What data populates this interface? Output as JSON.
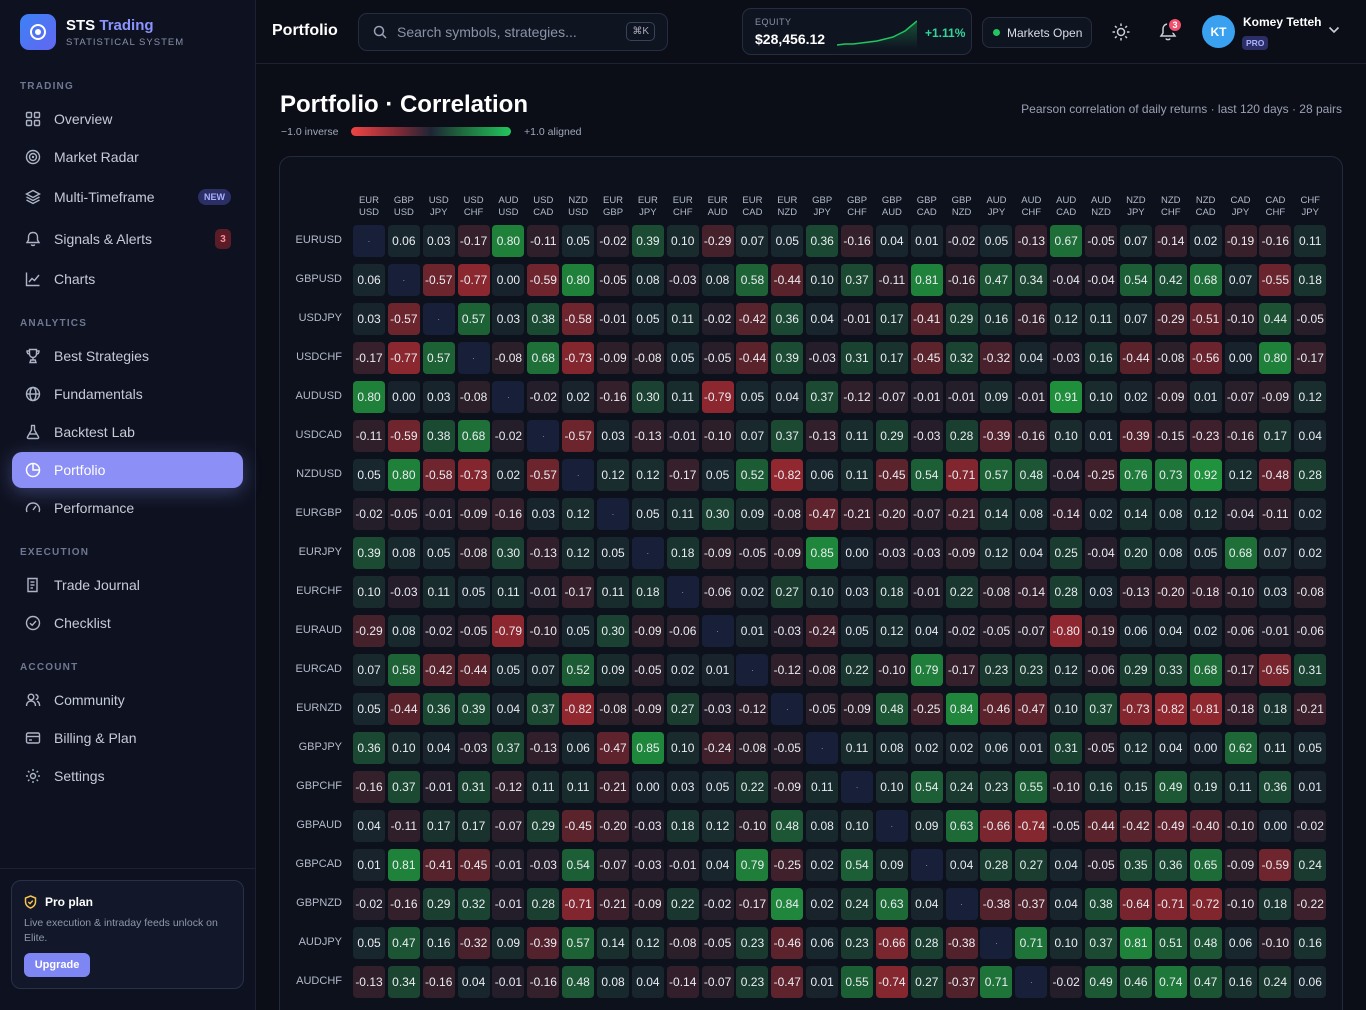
{
  "brand": {
    "name": "STS",
    "name_accent": "Trading",
    "subtitle": "STATISTICAL SYSTEM"
  },
  "sidebar": {
    "sections": [
      {
        "label": "TRADING",
        "items": [
          {
            "label": "Overview",
            "icon": "grid-icon"
          },
          {
            "label": "Market Radar",
            "icon": "target-icon"
          },
          {
            "label": "Multi-Timeframe",
            "icon": "layers-icon",
            "badge": "NEW"
          },
          {
            "label": "Signals & Alerts",
            "icon": "bell-icon",
            "count": "3"
          },
          {
            "label": "Charts",
            "icon": "line-chart-icon"
          }
        ]
      },
      {
        "label": "ANALYTICS",
        "items": [
          {
            "label": "Best Strategies",
            "icon": "trophy-icon"
          },
          {
            "label": "Fundamentals",
            "icon": "globe-icon"
          },
          {
            "label": "Backtest Lab",
            "icon": "flask-icon"
          },
          {
            "label": "Portfolio",
            "icon": "pie-chart-icon",
            "active": true
          },
          {
            "label": "Performance",
            "icon": "gauge-icon"
          }
        ]
      },
      {
        "label": "EXECUTION",
        "items": [
          {
            "label": "Trade Journal",
            "icon": "journal-icon"
          },
          {
            "label": "Checklist",
            "icon": "check-circle-icon"
          }
        ]
      },
      {
        "label": "ACCOUNT",
        "items": [
          {
            "label": "Community",
            "icon": "users-icon"
          },
          {
            "label": "Billing & Plan",
            "icon": "credit-card-icon"
          },
          {
            "label": "Settings",
            "icon": "gear-icon"
          }
        ]
      }
    ],
    "pro": {
      "title": "Pro plan",
      "desc": "Live execution & intraday feeds unlock on Elite.",
      "button": "Upgrade"
    }
  },
  "topbar": {
    "title": "Portfolio",
    "search_placeholder": "Search symbols, strategies...",
    "shortcut": "⌘K",
    "equity": {
      "label": "EQUITY",
      "value": "$28,456.12",
      "change": "+1.11%"
    },
    "market_status": "Markets Open",
    "notifications": "3",
    "user": {
      "initials": "KT",
      "name": "Komey Tetteh",
      "plan": "PRO"
    }
  },
  "page": {
    "title": "Portfolio · Correlation",
    "subtitle": "Pearson correlation of daily returns · last 120 days · 28 pairs",
    "legend_left": "−1.0 inverse",
    "legend_right": "+1.0 aligned",
    "colors": {
      "positive": "#22c55e",
      "negative": "#ef4444",
      "neutral": "#1e2536"
    }
  },
  "correlation": {
    "col_labels": [
      [
        "EUR",
        "USD"
      ],
      [
        "GBP",
        "USD"
      ],
      [
        "USD",
        "JPY"
      ],
      [
        "USD",
        "CHF"
      ],
      [
        "AUD",
        "USD"
      ],
      [
        "USD",
        "CAD"
      ],
      [
        "NZD",
        "USD"
      ],
      [
        "EUR",
        "GBP"
      ],
      [
        "EUR",
        "JPY"
      ],
      [
        "EUR",
        "CHF"
      ],
      [
        "EUR",
        "AUD"
      ],
      [
        "EUR",
        "CAD"
      ],
      [
        "EUR",
        "NZD"
      ],
      [
        "GBP",
        "JPY"
      ],
      [
        "GBP",
        "CHF"
      ],
      [
        "GBP",
        "AUD"
      ],
      [
        "GBP",
        "CAD"
      ],
      [
        "GBP",
        "NZD"
      ],
      [
        "AUD",
        "JPY"
      ],
      [
        "AUD",
        "CHF"
      ],
      [
        "AUD",
        "CAD"
      ],
      [
        "AUD",
        "NZD"
      ],
      [
        "NZD",
        "JPY"
      ],
      [
        "NZD",
        "CHF"
      ],
      [
        "NZD",
        "CAD"
      ],
      [
        "CAD",
        "JPY"
      ],
      [
        "CAD",
        "CHF"
      ],
      [
        "CHF",
        "JPY"
      ]
    ],
    "row_labels": [
      "EURUSD",
      "GBPUSD",
      "USDJPY",
      "USDCHF",
      "AUDUSD",
      "USDCAD",
      "NZDUSD",
      "EURGBP",
      "EURJPY",
      "EURCHF",
      "EURAUD",
      "EURCAD",
      "EURNZD",
      "GBPJPY",
      "GBPCHF",
      "GBPAUD",
      "GBPCAD",
      "GBPNZD",
      "AUDJPY",
      "AUDCHF"
    ],
    "diag_label": "·",
    "rows": [
      [
        "·",
        "0.06",
        "0.03",
        "-0.17",
        "0.80",
        "-0.11",
        "0.05",
        "-0.02",
        "0.39",
        "0.10",
        "-0.29",
        "0.07",
        "0.05",
        "0.36",
        "-0.16",
        "0.04",
        "0.01",
        "-0.02",
        "0.05",
        "-0.13",
        "0.67",
        "-0.05",
        "0.07",
        "-0.14",
        "0.02",
        "-0.19",
        "-0.16",
        "0.11"
      ],
      [
        "0.06",
        "·",
        "-0.57",
        "-0.77",
        "0.00",
        "-0.59",
        "0.80",
        "-0.05",
        "0.08",
        "-0.03",
        "0.08",
        "0.58",
        "-0.44",
        "0.10",
        "0.37",
        "-0.11",
        "0.81",
        "-0.16",
        "0.47",
        "0.34",
        "-0.04",
        "-0.04",
        "0.54",
        "0.42",
        "0.68",
        "0.07",
        "-0.55",
        "0.18"
      ],
      [
        "0.03",
        "-0.57",
        "·",
        "0.57",
        "0.03",
        "0.38",
        "-0.58",
        "-0.01",
        "0.05",
        "0.11",
        "-0.02",
        "-0.42",
        "0.36",
        "0.04",
        "-0.01",
        "0.17",
        "-0.41",
        "0.29",
        "0.16",
        "-0.16",
        "0.12",
        "0.11",
        "0.07",
        "-0.29",
        "-0.51",
        "-0.10",
        "0.44",
        "-0.05"
      ],
      [
        "-0.17",
        "-0.77",
        "0.57",
        "·",
        "-0.08",
        "0.68",
        "-0.73",
        "-0.09",
        "-0.08",
        "0.05",
        "-0.05",
        "-0.44",
        "0.39",
        "-0.03",
        "0.31",
        "0.17",
        "-0.45",
        "0.32",
        "-0.32",
        "0.04",
        "-0.03",
        "0.16",
        "-0.44",
        "-0.08",
        "-0.56",
        "0.00",
        "0.80",
        "-0.17"
      ],
      [
        "0.80",
        "0.00",
        "0.03",
        "-0.08",
        "·",
        "-0.02",
        "0.02",
        "-0.16",
        "0.30",
        "0.11",
        "-0.79",
        "0.05",
        "0.04",
        "0.37",
        "-0.12",
        "-0.07",
        "-0.01",
        "-0.01",
        "0.09",
        "-0.01",
        "0.91",
        "0.10",
        "0.02",
        "-0.09",
        "0.01",
        "-0.07",
        "-0.09",
        "0.12"
      ],
      [
        "-0.11",
        "-0.59",
        "0.38",
        "0.68",
        "-0.02",
        "·",
        "-0.57",
        "0.03",
        "-0.13",
        "-0.01",
        "-0.10",
        "0.07",
        "0.37",
        "-0.13",
        "0.11",
        "0.29",
        "-0.03",
        "0.28",
        "-0.39",
        "-0.16",
        "0.10",
        "0.01",
        "-0.39",
        "-0.15",
        "-0.23",
        "-0.16",
        "0.17",
        "0.04"
      ],
      [
        "0.05",
        "0.80",
        "-0.58",
        "-0.73",
        "0.02",
        "-0.57",
        "·",
        "0.12",
        "0.12",
        "-0.17",
        "0.05",
        "0.52",
        "-0.82",
        "0.06",
        "0.11",
        "-0.45",
        "0.54",
        "-0.71",
        "0.57",
        "0.48",
        "-0.04",
        "-0.25",
        "0.76",
        "0.73",
        "0.92",
        "0.12",
        "-0.48",
        "0.28"
      ],
      [
        "-0.02",
        "-0.05",
        "-0.01",
        "-0.09",
        "-0.16",
        "0.03",
        "0.12",
        "·",
        "0.05",
        "0.11",
        "0.30",
        "0.09",
        "-0.08",
        "-0.47",
        "-0.21",
        "-0.20",
        "-0.07",
        "-0.21",
        "0.14",
        "0.08",
        "-0.14",
        "0.02",
        "0.14",
        "0.08",
        "0.12",
        "-0.04",
        "-0.11",
        "0.02"
      ],
      [
        "0.39",
        "0.08",
        "0.05",
        "-0.08",
        "0.30",
        "-0.13",
        "0.12",
        "0.05",
        "·",
        "0.18",
        "-0.09",
        "-0.05",
        "-0.09",
        "0.85",
        "0.00",
        "-0.03",
        "-0.03",
        "-0.09",
        "0.12",
        "0.04",
        "0.25",
        "-0.04",
        "0.20",
        "0.08",
        "0.05",
        "0.68",
        "0.07",
        "0.02"
      ],
      [
        "0.10",
        "-0.03",
        "0.11",
        "0.05",
        "0.11",
        "-0.01",
        "-0.17",
        "0.11",
        "0.18",
        "·",
        "-0.06",
        "0.02",
        "0.27",
        "0.10",
        "0.03",
        "0.18",
        "-0.01",
        "0.22",
        "-0.08",
        "-0.14",
        "0.28",
        "0.03",
        "-0.13",
        "-0.20",
        "-0.18",
        "-0.10",
        "0.03",
        "-0.08"
      ],
      [
        "-0.29",
        "0.08",
        "-0.02",
        "-0.05",
        "-0.79",
        "-0.10",
        "0.05",
        "0.30",
        "-0.09",
        "-0.06",
        "·",
        "0.01",
        "-0.03",
        "-0.24",
        "0.05",
        "0.12",
        "0.04",
        "-0.02",
        "-0.05",
        "-0.07",
        "-0.80",
        "-0.19",
        "0.06",
        "0.04",
        "0.02",
        "-0.06",
        "-0.01",
        "-0.06"
      ],
      [
        "0.07",
        "0.58",
        "-0.42",
        "-0.44",
        "0.05",
        "0.07",
        "0.52",
        "0.09",
        "-0.05",
        "0.02",
        "0.01",
        "·",
        "-0.12",
        "-0.08",
        "0.22",
        "-0.10",
        "0.79",
        "-0.17",
        "0.23",
        "0.23",
        "0.12",
        "-0.06",
        "0.29",
        "0.33",
        "0.68",
        "-0.17",
        "-0.65",
        "0.31"
      ],
      [
        "0.05",
        "-0.44",
        "0.36",
        "0.39",
        "0.04",
        "0.37",
        "-0.82",
        "-0.08",
        "-0.09",
        "0.27",
        "-0.03",
        "-0.12",
        "·",
        "-0.05",
        "-0.09",
        "0.48",
        "-0.25",
        "0.84",
        "-0.46",
        "-0.47",
        "0.10",
        "0.37",
        "-0.73",
        "-0.82",
        "-0.81",
        "-0.18",
        "0.18",
        "-0.21"
      ],
      [
        "0.36",
        "0.10",
        "0.04",
        "-0.03",
        "0.37",
        "-0.13",
        "0.06",
        "-0.47",
        "0.85",
        "0.10",
        "-0.24",
        "-0.08",
        "-0.05",
        "·",
        "0.11",
        "0.08",
        "0.02",
        "0.02",
        "0.06",
        "0.01",
        "0.31",
        "-0.05",
        "0.12",
        "0.04",
        "0.00",
        "0.62",
        "0.11",
        "0.05"
      ],
      [
        "-0.16",
        "0.37",
        "-0.01",
        "0.31",
        "-0.12",
        "0.11",
        "0.11",
        "-0.21",
        "0.00",
        "0.03",
        "0.05",
        "0.22",
        "-0.09",
        "0.11",
        "·",
        "0.10",
        "0.54",
        "0.24",
        "0.23",
        "0.55",
        "-0.10",
        "0.16",
        "0.15",
        "0.49",
        "0.19",
        "0.11",
        "0.36",
        "0.01"
      ],
      [
        "0.04",
        "-0.11",
        "0.17",
        "0.17",
        "-0.07",
        "0.29",
        "-0.45",
        "-0.20",
        "-0.03",
        "0.18",
        "0.12",
        "-0.10",
        "0.48",
        "0.08",
        "0.10",
        "·",
        "0.09",
        "0.63",
        "-0.66",
        "-0.74",
        "-0.05",
        "-0.44",
        "-0.42",
        "-0.49",
        "-0.40",
        "-0.10",
        "0.00",
        "-0.02"
      ],
      [
        "0.01",
        "0.81",
        "-0.41",
        "-0.45",
        "-0.01",
        "-0.03",
        "0.54",
        "-0.07",
        "-0.03",
        "-0.01",
        "0.04",
        "0.79",
        "-0.25",
        "0.02",
        "0.54",
        "0.09",
        "·",
        "0.04",
        "0.28",
        "0.27",
        "0.04",
        "-0.05",
        "0.35",
        "0.36",
        "0.65",
        "-0.09",
        "-0.59",
        "0.24"
      ],
      [
        "-0.02",
        "-0.16",
        "0.29",
        "0.32",
        "-0.01",
        "0.28",
        "-0.71",
        "-0.21",
        "-0.09",
        "0.22",
        "-0.02",
        "-0.17",
        "0.84",
        "0.02",
        "0.24",
        "0.63",
        "0.04",
        "·",
        "-0.38",
        "-0.37",
        "0.04",
        "0.38",
        "-0.64",
        "-0.71",
        "-0.72",
        "-0.10",
        "0.18",
        "-0.22"
      ],
      [
        "0.05",
        "0.47",
        "0.16",
        "-0.32",
        "0.09",
        "-0.39",
        "0.57",
        "0.14",
        "0.12",
        "-0.08",
        "-0.05",
        "0.23",
        "-0.46",
        "0.06",
        "0.23",
        "-0.66",
        "0.28",
        "-0.38",
        "·",
        "0.71",
        "0.10",
        "0.37",
        "0.81",
        "0.51",
        "0.48",
        "0.06",
        "-0.10",
        "0.16"
      ],
      [
        "-0.13",
        "0.34",
        "-0.16",
        "0.04",
        "-0.01",
        "-0.16",
        "0.48",
        "0.08",
        "0.04",
        "-0.14",
        "-0.07",
        "0.23",
        "-0.47",
        "0.01",
        "0.55",
        "-0.74",
        "0.27",
        "-0.37",
        "0.71",
        "·",
        "-0.02",
        "0.49",
        "0.46",
        "0.74",
        "0.47",
        "0.16",
        "0.24",
        "0.06"
      ]
    ]
  }
}
